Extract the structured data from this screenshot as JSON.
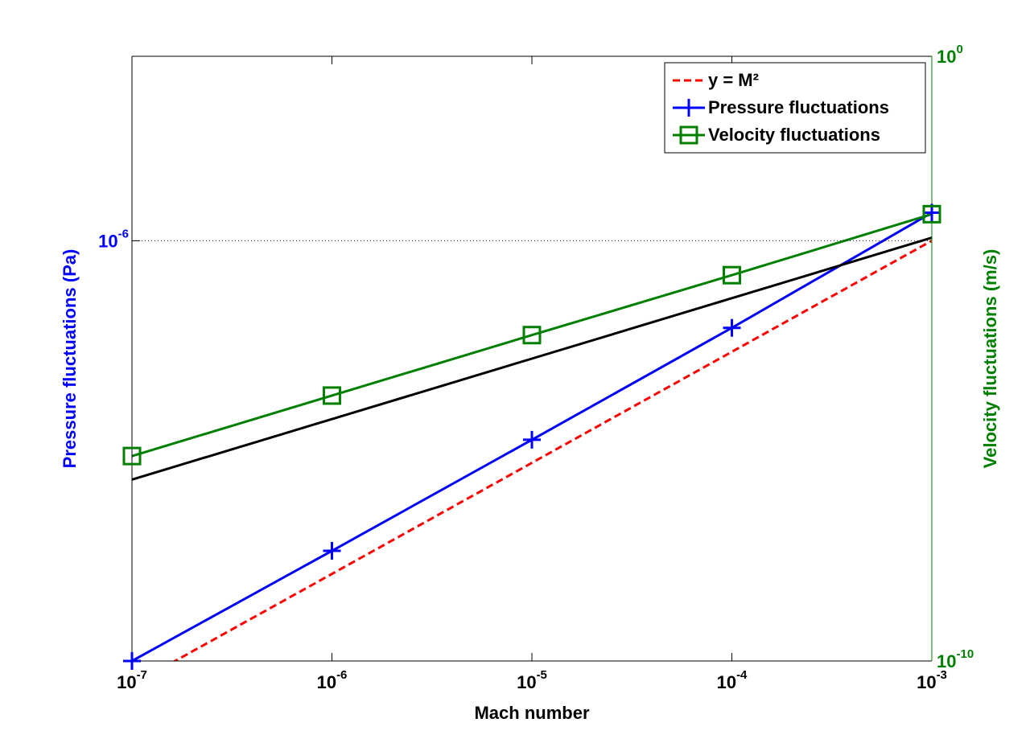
{
  "chart_data": {
    "type": "line",
    "xlabel": "Mach number",
    "ylabel": "Pressure fluctuations (Pa)",
    "y2label": "Velocity fluctuations (m/s)",
    "xscale": "log",
    "yscale": "log",
    "y2scale": "log",
    "xlim": [
      1e-07,
      0.001
    ],
    "xticks": [
      {
        "value": 1e-07,
        "label": "10-7"
      },
      {
        "value": 1e-06,
        "label": "10-6"
      },
      {
        "value": 1e-05,
        "label": "10-5"
      },
      {
        "value": 0.0001,
        "label": "10-4"
      },
      {
        "value": 0.001,
        "label": "10-3"
      }
    ],
    "ylim": [
      2.7e-14,
      0.0021
    ],
    "yticks": [
      {
        "value": 1e-06,
        "label": "10-6"
      }
    ],
    "y2lim": [
      1e-10,
      1
    ],
    "y2ticks": [
      {
        "value": 1e-10,
        "label": "10-10"
      },
      {
        "value": 1,
        "label": "100"
      }
    ],
    "ycolor": "#0000ff",
    "y2color": "#007f00",
    "ygrid": true,
    "legend": "northeast",
    "series": [
      {
        "name": "y = M²",
        "color": "#ff0000",
        "linestyle": "dashed",
        "axis": "y",
        "x": [
          1e-07,
          1e-06,
          1e-05,
          0.0001,
          0.001
        ],
        "values": [
          1e-14,
          1e-12,
          1e-10,
          1e-08,
          1e-06
        ]
      },
      {
        "name": "Pressure fluctuations",
        "color": "#0000ff",
        "linestyle": "solid",
        "marker": "+",
        "axis": "y",
        "x": [
          1e-07,
          1e-06,
          1e-05,
          0.0001,
          0.001
        ],
        "values": [
          2.7e-14,
          2.6e-12,
          2.6e-10,
          2.7e-08,
          3.2e-06
        ]
      },
      {
        "name": "Velocity fluctuations",
        "color": "#007f00",
        "linestyle": "solid",
        "marker": "s",
        "axis": "y2",
        "x": [
          1e-07,
          1e-06,
          1e-05,
          0.0001,
          0.001
        ],
        "values": [
          2.45e-07,
          2.45e-06,
          2.45e-05,
          0.00024,
          0.00245
        ]
      },
      {
        "color": "#000000",
        "linestyle": "solid",
        "axis": "y2",
        "x": [
          1e-07,
          1e-06,
          1e-05,
          0.0001,
          0.001
        ],
        "values": [
          1e-07,
          1e-06,
          1e-05,
          0.0001,
          0.001
        ]
      }
    ]
  }
}
